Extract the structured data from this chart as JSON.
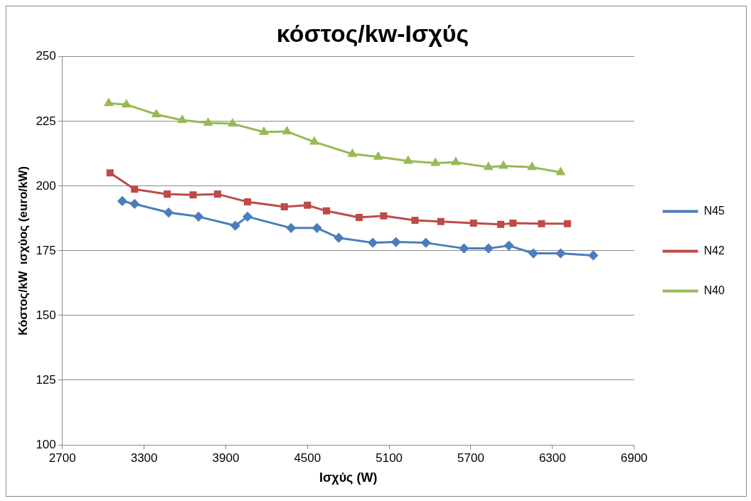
{
  "chart_data": {
    "type": "line",
    "title": "κόστος/kw-Ισχύς",
    "xlabel": "Ισχύς (W)",
    "ylabel": "Κόστος/kW  ισχύος (euro/kW)",
    "xlim": [
      2700,
      6900
    ],
    "xticks": [
      2700,
      3300,
      3900,
      4500,
      5100,
      5700,
      6300,
      6900
    ],
    "ylim": [
      100,
      250
    ],
    "yticks": [
      100,
      125,
      150,
      175,
      200,
      225,
      250
    ],
    "grid": "y",
    "legend": "right",
    "line_style": "solid",
    "series": [
      {
        "name": "N45",
        "color": "#4a7ebb",
        "marker": "diamond",
        "x": [
          3140,
          3230,
          3480,
          3700,
          3970,
          4060,
          4380,
          4570,
          4730,
          4980,
          5150,
          5370,
          5650,
          5830,
          5980,
          6160,
          6360,
          6600
        ],
        "values": [
          194.2,
          193.1,
          189.8,
          188.2,
          184.7,
          188.2,
          183.8,
          183.8,
          180.0,
          178.1,
          178.4,
          178.1,
          175.9,
          175.9,
          177.0,
          174.0,
          174.0,
          173.2
        ]
      },
      {
        "name": "N42",
        "color": "#be4b48",
        "marker": "square",
        "x": [
          3050,
          3230,
          3470,
          3660,
          3840,
          4060,
          4330,
          4500,
          4640,
          4880,
          5060,
          5290,
          5480,
          5720,
          5920,
          6010,
          6220,
          6410
        ],
        "values": [
          205.1,
          198.8,
          196.9,
          196.6,
          196.9,
          193.9,
          192.0,
          192.6,
          190.4,
          187.9,
          188.5,
          186.8,
          186.3,
          185.7,
          185.2,
          185.7,
          185.5,
          185.5
        ]
      },
      {
        "name": "N40",
        "color": "#98b954",
        "marker": "triangle",
        "x": [
          3040,
          3170,
          3390,
          3580,
          3770,
          3950,
          4180,
          4350,
          4550,
          4830,
          5020,
          5240,
          5440,
          5590,
          5830,
          5940,
          6150,
          6360
        ],
        "values": [
          232.0,
          231.5,
          227.7,
          225.5,
          224.4,
          224.1,
          220.9,
          221.1,
          217.1,
          212.4,
          211.3,
          209.7,
          208.9,
          209.2,
          207.3,
          207.8,
          207.3,
          205.3
        ]
      }
    ]
  }
}
